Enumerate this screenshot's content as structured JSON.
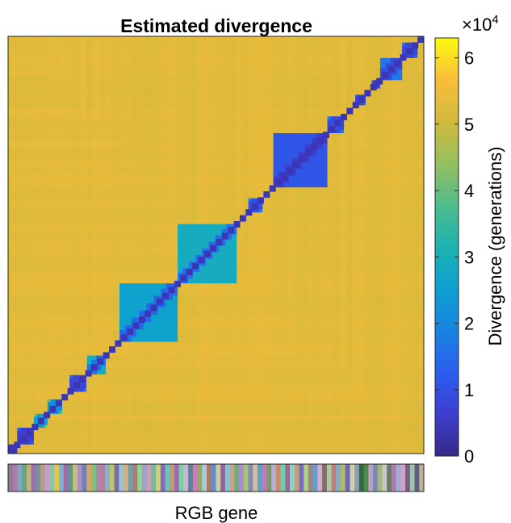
{
  "chart_data": {
    "type": "heatmap",
    "title": "Estimated divergence",
    "xlabel": "RGB gene",
    "ylabel": "",
    "colorbar": {
      "label": "Divergence (generations)",
      "multiplier_label": "×10",
      "multiplier_exponent": "4",
      "range": [
        0,
        6.3
      ],
      "ticks": [
        0,
        1,
        2,
        3,
        4,
        5,
        6
      ],
      "tick_labels": [
        "0",
        "1",
        "2",
        "3",
        "4",
        "5",
        "6"
      ],
      "colormap": "parula"
    },
    "background_divergence_x1e4": 5.3,
    "diagonal_divergence_x1e4": 0.4,
    "clusters": [
      {
        "start": 0.0,
        "end": 0.022,
        "within_x1e4": 0.7
      },
      {
        "start": 0.022,
        "end": 0.062,
        "within_x1e4": 1.2
      },
      {
        "start": 0.062,
        "end": 0.095,
        "within_x1e4": 4.5
      },
      {
        "start": 0.095,
        "end": 0.13,
        "within_x1e4": 3.9
      },
      {
        "start": 0.13,
        "end": 0.14,
        "within_x1e4": 1.2
      },
      {
        "start": 0.148,
        "end": 0.188,
        "within_x1e4": 1.4
      },
      {
        "start": 0.19,
        "end": 0.235,
        "within_x1e4": 2.9
      },
      {
        "start": 0.268,
        "end": 0.408,
        "within_x1e4": 2.6
      },
      {
        "start": 0.408,
        "end": 0.55,
        "within_x1e4": 2.9
      },
      {
        "start": 0.578,
        "end": 0.612,
        "within_x1e4": 1.9
      },
      {
        "start": 0.638,
        "end": 0.768,
        "within_x1e4": 1.1
      },
      {
        "start": 0.768,
        "end": 0.808,
        "within_x1e4": 1.7
      },
      {
        "start": 0.835,
        "end": 0.86,
        "within_x1e4": 1.4
      },
      {
        "start": 0.875,
        "end": 0.895,
        "within_x1e4": 1.2
      },
      {
        "start": 0.895,
        "end": 0.948,
        "within_x1e4": 1.7
      },
      {
        "start": 0.948,
        "end": 0.985,
        "within_x1e4": 1.5
      },
      {
        "start": 0.985,
        "end": 1.0,
        "within_x1e4": 1.0
      }
    ],
    "gene_strip_colors": [
      "#8a7f8e",
      "#b07aa8",
      "#7fa7c2",
      "#6fa27a",
      "#c2b27a",
      "#9a6fb0",
      "#7a8fa0",
      "#b6a07f",
      "#c79ad0",
      "#8fc2a8",
      "#e0c94a",
      "#7fb4d6",
      "#a46aa6",
      "#5f9a8a",
      "#c2c27a",
      "#b08fc0",
      "#6f7fb8",
      "#d6a46a",
      "#7fc27f",
      "#a08fa0",
      "#c27aa0",
      "#8ab2c8",
      "#b8c86a",
      "#7a6fa0",
      "#9ac2d6",
      "#d6b27a",
      "#6aa0b0",
      "#b07a7a",
      "#8ad68a",
      "#a0a0c8",
      "#c8a0b8",
      "#7ab8a0",
      "#d0d07a",
      "#8a6ab8",
      "#6ac2c2",
      "#b8a06a",
      "#a06ab0",
      "#7ad0a8",
      "#c8b8d0",
      "#5f7fa0",
      "#d67ab0",
      "#8ab06a",
      "#b0c8e0",
      "#a87a5f",
      "#6a8ad0",
      "#c8d0a0",
      "#9a5fa0",
      "#7ac8d0",
      "#d0a08a",
      "#6ab07a",
      "#b08ad0",
      "#a0c87a",
      "#8a8ab0",
      "#d0c0a0",
      "#5fa0c8",
      "#c07ab8",
      "#7a9a6a",
      "#b0b0d0",
      "#d08a6a",
      "#6ad0b0",
      "#a06a8a",
      "#8ad0d0",
      "#c8a06a",
      "#7a6ad0",
      "#b0d08a",
      "#9a8a7a",
      "#6a9ad0",
      "#d0b0c8",
      "#8a6a6a",
      "#a0d0a0",
      "#c87a7a",
      "#7ab0c8",
      "#b8b86a",
      "#6a6ab0",
      "#d0d0b0",
      "#8aa0b0",
      "#2f6a3a",
      "#4a8a4a",
      "#c0a0c0",
      "#7a8ab8",
      "#a0b87a",
      "#c8c8c8",
      "#6a7a6a",
      "#b07ab0",
      "#9ab0d0",
      "#d0a0d0",
      "#7a5f7a",
      "#a0c0b0",
      "#5f5f7a",
      "#c0b09a"
    ]
  }
}
